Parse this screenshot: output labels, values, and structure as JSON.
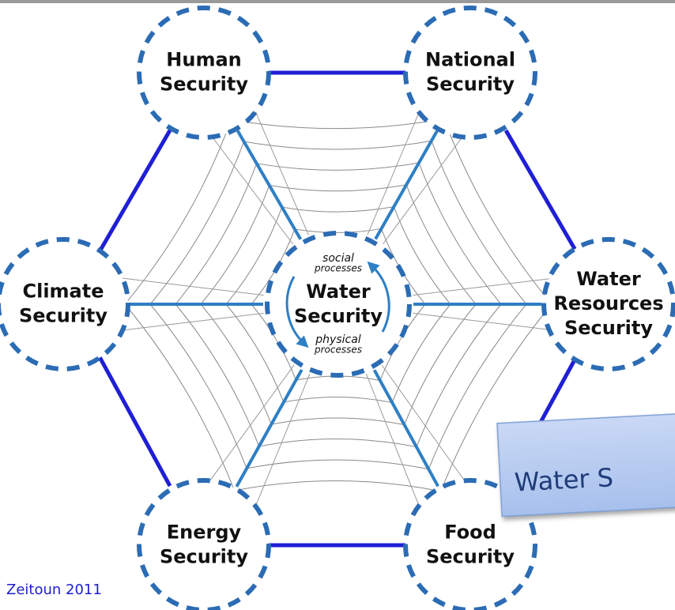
{
  "nodes": [
    {
      "lines": [
        "Human",
        "Security"
      ]
    },
    {
      "lines": [
        "National",
        "Security"
      ]
    },
    {
      "lines": [
        "Climate",
        "Security"
      ]
    },
    {
      "lines": [
        "Water",
        "Resources",
        "Security"
      ]
    },
    {
      "lines": [
        "Energy",
        "Security"
      ]
    },
    {
      "lines": [
        "Food",
        "Security"
      ]
    }
  ],
  "center": {
    "top": [
      "social",
      "processes"
    ],
    "title": [
      "Water",
      "Security"
    ],
    "bottom": [
      "physical",
      "processes"
    ]
  },
  "citation": "Zeitoun 2011",
  "callout": "Water S"
}
